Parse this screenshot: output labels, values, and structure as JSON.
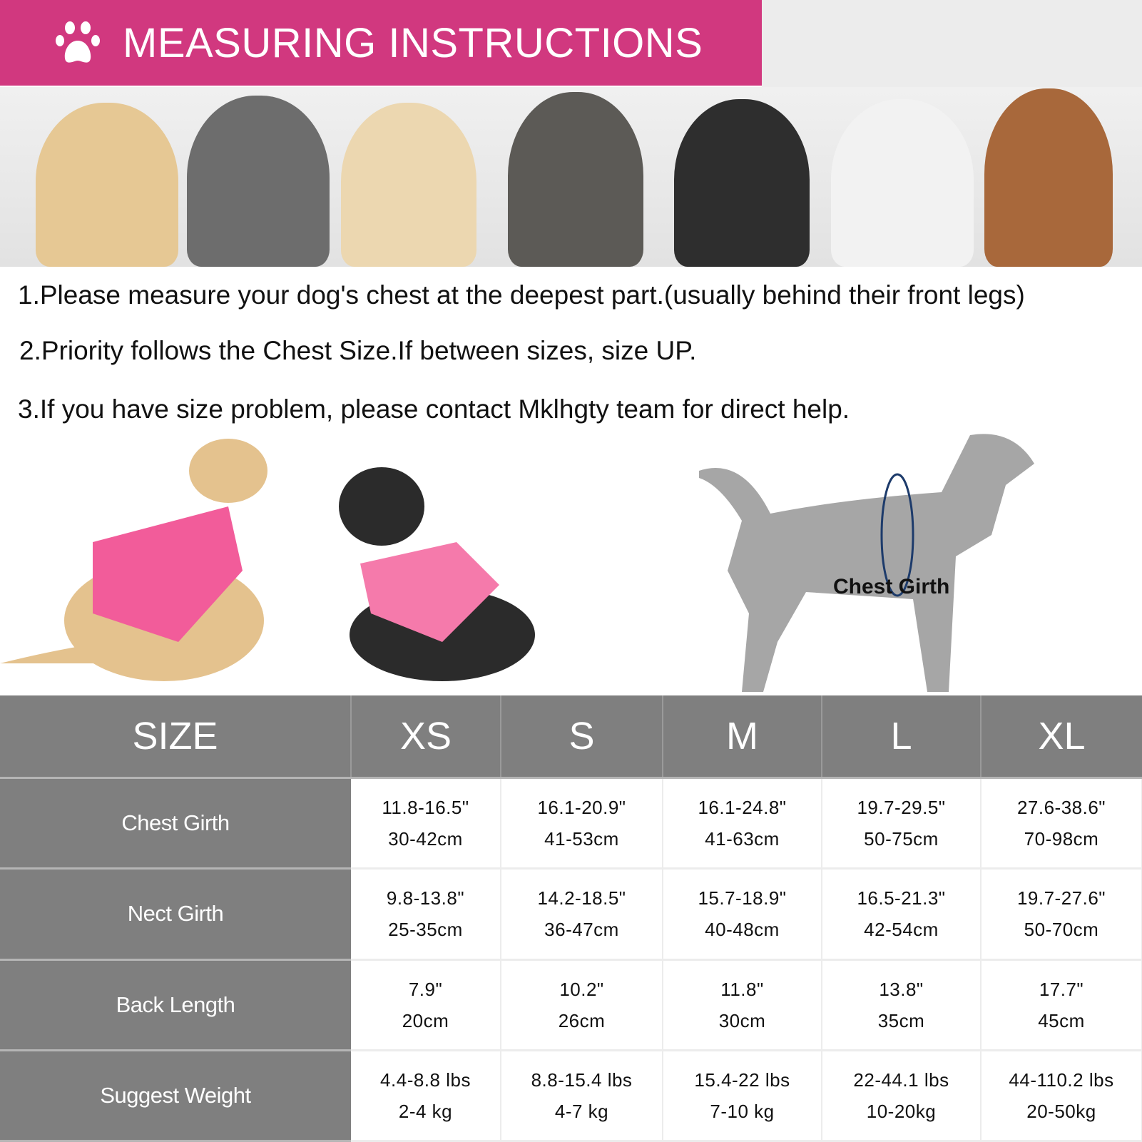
{
  "header": {
    "title": "MEASURING INSTRUCTIONS",
    "icon": "paw-icon",
    "color": "#d1387f"
  },
  "instructions": [
    "1.Please measure your dog's chest at the deepest part.(usually behind their front legs)",
    "2.Priority follows the Chest Size.If between sizes, size UP.",
    "3.If you have size problem, please contact Mklhgty team for direct help."
  ],
  "diagram": {
    "label": "Chest Girth"
  },
  "size_table": {
    "columns": [
      "SIZE",
      "XS",
      "S",
      "M",
      "L",
      "XL"
    ],
    "rows": [
      {
        "label": "Chest Girth",
        "values": [
          [
            "11.8-16.5\"",
            "30-42cm"
          ],
          [
            "16.1-20.9\"",
            "41-53cm"
          ],
          [
            "16.1-24.8\"",
            "41-63cm"
          ],
          [
            "19.7-29.5\"",
            "50-75cm"
          ],
          [
            "27.6-38.6\"",
            "70-98cm"
          ]
        ]
      },
      {
        "label": "Nect Girth",
        "values": [
          [
            "9.8-13.8\"",
            "25-35cm"
          ],
          [
            "14.2-18.5\"",
            "36-47cm"
          ],
          [
            "15.7-18.9\"",
            "40-48cm"
          ],
          [
            "16.5-21.3\"",
            "42-54cm"
          ],
          [
            "19.7-27.6\"",
            "50-70cm"
          ]
        ]
      },
      {
        "label": "Back Length",
        "values": [
          [
            "7.9\"",
            "20cm"
          ],
          [
            "10.2\"",
            "26cm"
          ],
          [
            "11.8\"",
            "30cm"
          ],
          [
            "13.8\"",
            "35cm"
          ],
          [
            "17.7\"",
            "45cm"
          ]
        ]
      },
      {
        "label": "Suggest Weight",
        "values": [
          [
            "4.4-8.8 lbs",
            "2-4 kg"
          ],
          [
            "8.8-15.4 lbs",
            "4-7 kg"
          ],
          [
            "15.4-22 lbs",
            "7-10 kg"
          ],
          [
            "22-44.1 lbs",
            "10-20kg"
          ],
          [
            "44-110.2 lbs",
            "20-50kg"
          ]
        ]
      }
    ]
  }
}
